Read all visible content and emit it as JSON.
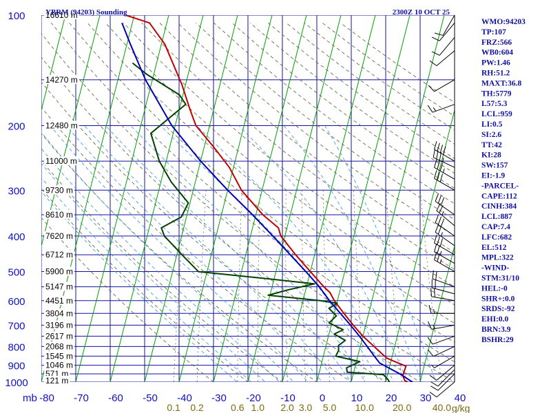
{
  "header": {
    "station_title": "YBRM (94203) Sounding",
    "valid_time": "2300Z 10 OCT 25"
  },
  "axes": {
    "pressure_unit": "mb",
    "mixing_ratio_unit": "g/kg"
  },
  "indices": [
    "WMO:94203",
    "TP:107",
    "FRZ:566",
    "WB0:604",
    "PW:1.46",
    "RH:51.2",
    "MAXT:36.8",
    "TH:5779",
    "L57:5.3",
    "LCL:959",
    "LI:0.5",
    "SI:2.6",
    "TT:42",
    "KI:28",
    "SW:157",
    "EI:-1.9",
    "-PARCEL-",
    "CAPE:112",
    "CINH:384",
    "LCL:887",
    "CAP:7.4",
    "LFC:682",
    "EL:512",
    "MPL:322",
    "-WIND-",
    "STM:31/10",
    "HEL:-0",
    "SHR+:0.0",
    "SRDS:-92",
    "EHI:0.0",
    "BRN:3.9",
    "BSHR:29"
  ],
  "colors": {
    "background": "#ffffff",
    "grid": "#1010a0",
    "isotherm_skewed": "#00a000",
    "dry_adiabat": "#5a5a30",
    "moist_adiabat": "#3090e0",
    "temperature": "#c00000",
    "dewpoint": "#004000",
    "parcel": "#0000b0",
    "wind_barb": "#000000",
    "text": "#1010a0"
  },
  "chart_data": {
    "type": "line",
    "title": "YBRM (94203) Sounding",
    "subtitle": "2300Z 10 OCT 25",
    "xlabel": "",
    "ylabel": "mb",
    "scale": "log-pressure skew-T",
    "ylim": [
      1000,
      100
    ],
    "xlim_at_1000mb": [
      -80,
      40
    ],
    "pressure_ticks": [
      100,
      200,
      300,
      400,
      500,
      600,
      700,
      800,
      900,
      1000
    ],
    "temperature_ticks": [
      -80,
      -70,
      -60,
      -50,
      -40,
      -30,
      -20,
      -10,
      0,
      10,
      20,
      30,
      40
    ],
    "mixing_ratio_ticks": [
      "0.1",
      "0.2",
      "0.6",
      "1.0",
      "2.0",
      "3.0",
      "5.0",
      "10.0",
      "20.0",
      "40.0"
    ],
    "height_labels": [
      {
        "p": 100,
        "label": "16610 m"
      },
      {
        "p": 150,
        "label": "14270 m"
      },
      {
        "p": 200,
        "label": "12480 m"
      },
      {
        "p": 250,
        "label": "11000 m"
      },
      {
        "p": 300,
        "label": "9730 m"
      },
      {
        "p": 350,
        "label": "8610 m"
      },
      {
        "p": 400,
        "label": "7620 m"
      },
      {
        "p": 450,
        "label": "6712 m"
      },
      {
        "p": 500,
        "label": "5900 m"
      },
      {
        "p": 550,
        "label": "5147 m"
      },
      {
        "p": 600,
        "label": "4451 m"
      },
      {
        "p": 650,
        "label": "3804 m"
      },
      {
        "p": 700,
        "label": "3196 m"
      },
      {
        "p": 750,
        "label": "2617 m"
      },
      {
        "p": 800,
        "label": "2068 m"
      },
      {
        "p": 850,
        "label": "1545 m"
      },
      {
        "p": 900,
        "label": "1046 m"
      },
      {
        "p": 950,
        "label": "571 m"
      },
      {
        "p": 1000,
        "label": "121 m"
      }
    ],
    "series": [
      {
        "key": "temperature",
        "points": [
          [
            1009,
            27.2
          ],
          [
            990,
            25.4
          ],
          [
            960,
            24.5
          ],
          [
            935,
            24.6
          ],
          [
            905,
            24.7
          ],
          [
            880,
            21.2
          ],
          [
            860,
            18.5
          ],
          [
            800,
            14.0
          ],
          [
            750,
            10.0
          ],
          [
            700,
            6.4
          ],
          [
            650,
            2.8
          ],
          [
            600,
            -0.9
          ],
          [
            570,
            -2.8
          ],
          [
            550,
            -5.0
          ],
          [
            500,
            -10.0
          ],
          [
            450,
            -15.5
          ],
          [
            400,
            -21.2
          ],
          [
            380,
            -22.5
          ],
          [
            350,
            -28.0
          ],
          [
            300,
            -36.0
          ],
          [
            260,
            -41.2
          ],
          [
            230,
            -47.0
          ],
          [
            200,
            -54.0
          ],
          [
            180,
            -57.0
          ],
          [
            155,
            -61.0
          ],
          [
            120,
            -69.0
          ],
          [
            105,
            -75.0
          ],
          [
            100,
            -82.5
          ]
        ]
      },
      {
        "key": "dewpoint",
        "points": [
          [
            1009,
            21.4
          ],
          [
            985,
            20.5
          ],
          [
            955,
            18.8
          ],
          [
            940,
            8.1
          ],
          [
            915,
            7.6
          ],
          [
            880,
            11.0
          ],
          [
            850,
            3.6
          ],
          [
            820,
            4.0
          ],
          [
            795,
            3.6
          ],
          [
            770,
            5.2
          ],
          [
            740,
            1.5
          ],
          [
            720,
            3.8
          ],
          [
            690,
            -0.8
          ],
          [
            660,
            0.8
          ],
          [
            630,
            -1.9
          ],
          [
            610,
            0.1
          ],
          [
            600,
            -5.0
          ],
          [
            580,
            -20.5
          ],
          [
            560,
            -14.9
          ],
          [
            540,
            -7.9
          ],
          [
            520,
            -24.5
          ],
          [
            500,
            -42.5
          ],
          [
            450,
            -48.5
          ],
          [
            400,
            -55.0
          ],
          [
            380,
            -56.5
          ],
          [
            355,
            -51.5
          ],
          [
            325,
            -50.5
          ],
          [
            285,
            -57.0
          ],
          [
            250,
            -62.0
          ],
          [
            210,
            -66.5
          ],
          [
            175,
            -58.5
          ],
          [
            165,
            -61.0
          ],
          [
            145,
            -72.0
          ],
          [
            135,
            -77.0
          ]
        ]
      },
      {
        "key": "parcel",
        "points": [
          [
            1009,
            28.5
          ],
          [
            950,
            23.5
          ],
          [
            887,
            16.8
          ],
          [
            850,
            14.8
          ],
          [
            800,
            12.0
          ],
          [
            750,
            9.0
          ],
          [
            700,
            5.6
          ],
          [
            600,
            -2.3
          ],
          [
            550,
            -6.3
          ],
          [
            500,
            -11.3
          ],
          [
            400,
            -23.5
          ],
          [
            350,
            -31.0
          ],
          [
            300,
            -40.0
          ],
          [
            250,
            -50.0
          ],
          [
            200,
            -61.0
          ],
          [
            150,
            -72.0
          ],
          [
            120,
            -79.0
          ],
          [
            105,
            -83.0
          ]
        ]
      }
    ],
    "wind_barbs": [
      {
        "p": 1000,
        "dir": 230,
        "spd": 10
      },
      {
        "p": 950,
        "dir": 225,
        "spd": 10
      },
      {
        "p": 925,
        "dir": 225,
        "spd": 10
      },
      {
        "p": 900,
        "dir": 230,
        "spd": 10
      },
      {
        "p": 850,
        "dir": 240,
        "spd": 5
      },
      {
        "p": 800,
        "dir": 245,
        "spd": 10
      },
      {
        "p": 750,
        "dir": 250,
        "spd": 10
      },
      {
        "p": 700,
        "dir": 260,
        "spd": 15
      },
      {
        "p": 650,
        "dir": 270,
        "spd": 15
      },
      {
        "p": 600,
        "dir": 280,
        "spd": 20
      },
      {
        "p": 575,
        "dir": 285,
        "spd": 20
      },
      {
        "p": 550,
        "dir": 290,
        "spd": 20
      },
      {
        "p": 500,
        "dir": 300,
        "spd": 25
      },
      {
        "p": 475,
        "dir": 300,
        "spd": 25
      },
      {
        "p": 450,
        "dir": 300,
        "spd": 30
      },
      {
        "p": 425,
        "dir": 305,
        "spd": 25
      },
      {
        "p": 400,
        "dir": 305,
        "spd": 30
      },
      {
        "p": 375,
        "dir": 310,
        "spd": 25
      },
      {
        "p": 350,
        "dir": 305,
        "spd": 30
      },
      {
        "p": 300,
        "dir": 300,
        "spd": 30
      },
      {
        "p": 280,
        "dir": 300,
        "spd": 35
      },
      {
        "p": 260,
        "dir": 295,
        "spd": 35
      },
      {
        "p": 250,
        "dir": 300,
        "spd": 40
      },
      {
        "p": 175,
        "dir": 250,
        "spd": 15
      },
      {
        "p": 150,
        "dir": 240,
        "spd": 10
      },
      {
        "p": 125,
        "dir": 230,
        "spd": 10
      },
      {
        "p": 115,
        "dir": 220,
        "spd": 10
      },
      {
        "p": 105,
        "dir": 220,
        "spd": 10
      },
      {
        "p": 100,
        "dir": 210,
        "spd": 10
      }
    ]
  }
}
